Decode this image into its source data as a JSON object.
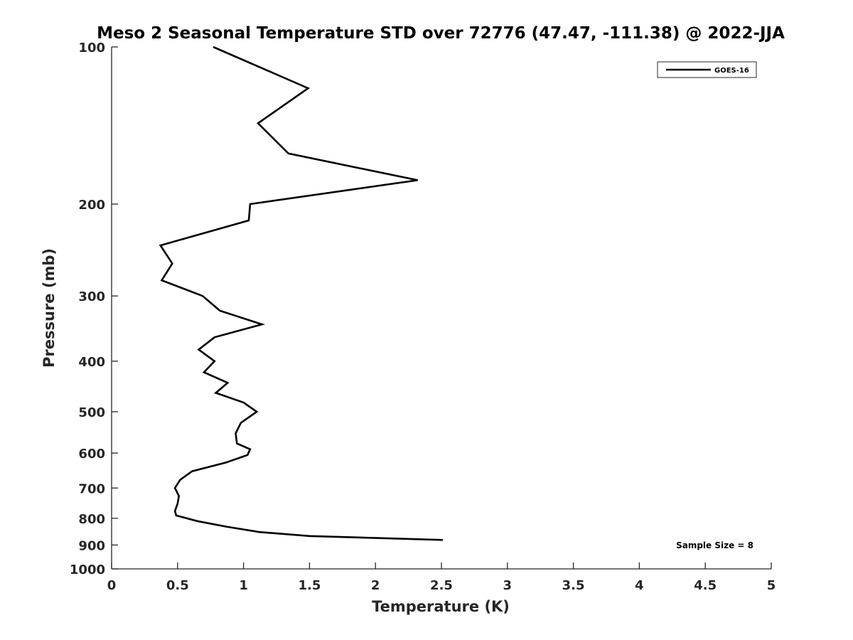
{
  "chart_data": {
    "type": "line",
    "title": "Meso 2 Seasonal Temperature STD over 72776 (47.47, -111.38) @ 2022-JJA",
    "xlabel": "Temperature (K)",
    "ylabel": "Pressure (mb)",
    "xlim": [
      0,
      5
    ],
    "ylim": [
      100,
      1000
    ],
    "y_scale": "log",
    "y_reversed": true,
    "x_ticks": [
      0,
      0.5,
      1,
      1.5,
      2,
      2.5,
      3,
      3.5,
      4,
      4.5,
      5
    ],
    "x_tick_labels": [
      "0",
      "0.5",
      "1",
      "1.5",
      "2",
      "2.5",
      "3",
      "3.5",
      "4",
      "4.5",
      "5"
    ],
    "y_ticks": [
      100,
      200,
      300,
      400,
      500,
      600,
      700,
      800,
      900,
      1000
    ],
    "y_tick_labels": [
      "100",
      "200",
      "300",
      "400",
      "500",
      "600",
      "700",
      "800",
      "900",
      "1000"
    ],
    "grid": false,
    "legend_position": "top-right",
    "annotation": "Sample Size = 8",
    "series": [
      {
        "name": "GOES-16",
        "color": "#000000",
        "points": [
          {
            "x": 0.77,
            "y": 100
          },
          {
            "x": 1.49,
            "y": 120
          },
          {
            "x": 1.11,
            "y": 140
          },
          {
            "x": 1.34,
            "y": 160
          },
          {
            "x": 2.32,
            "y": 180
          },
          {
            "x": 1.05,
            "y": 200
          },
          {
            "x": 1.04,
            "y": 215
          },
          {
            "x": 0.37,
            "y": 240
          },
          {
            "x": 0.46,
            "y": 260
          },
          {
            "x": 0.38,
            "y": 280
          },
          {
            "x": 0.69,
            "y": 300
          },
          {
            "x": 0.82,
            "y": 320
          },
          {
            "x": 1.14,
            "y": 340
          },
          {
            "x": 0.78,
            "y": 360
          },
          {
            "x": 0.66,
            "y": 380
          },
          {
            "x": 0.78,
            "y": 400
          },
          {
            "x": 0.7,
            "y": 420
          },
          {
            "x": 0.88,
            "y": 440
          },
          {
            "x": 0.79,
            "y": 460
          },
          {
            "x": 1.0,
            "y": 480
          },
          {
            "x": 1.1,
            "y": 500
          },
          {
            "x": 0.98,
            "y": 525
          },
          {
            "x": 0.94,
            "y": 550
          },
          {
            "x": 0.95,
            "y": 575
          },
          {
            "x": 1.05,
            "y": 590
          },
          {
            "x": 1.03,
            "y": 605
          },
          {
            "x": 0.87,
            "y": 625
          },
          {
            "x": 0.61,
            "y": 650
          },
          {
            "x": 0.52,
            "y": 675
          },
          {
            "x": 0.48,
            "y": 700
          },
          {
            "x": 0.51,
            "y": 725
          },
          {
            "x": 0.5,
            "y": 750
          },
          {
            "x": 0.48,
            "y": 775
          },
          {
            "x": 0.49,
            "y": 790
          },
          {
            "x": 0.65,
            "y": 810
          },
          {
            "x": 0.87,
            "y": 830
          },
          {
            "x": 1.12,
            "y": 850
          },
          {
            "x": 1.5,
            "y": 865
          },
          {
            "x": 2.51,
            "y": 880
          }
        ]
      }
    ]
  }
}
